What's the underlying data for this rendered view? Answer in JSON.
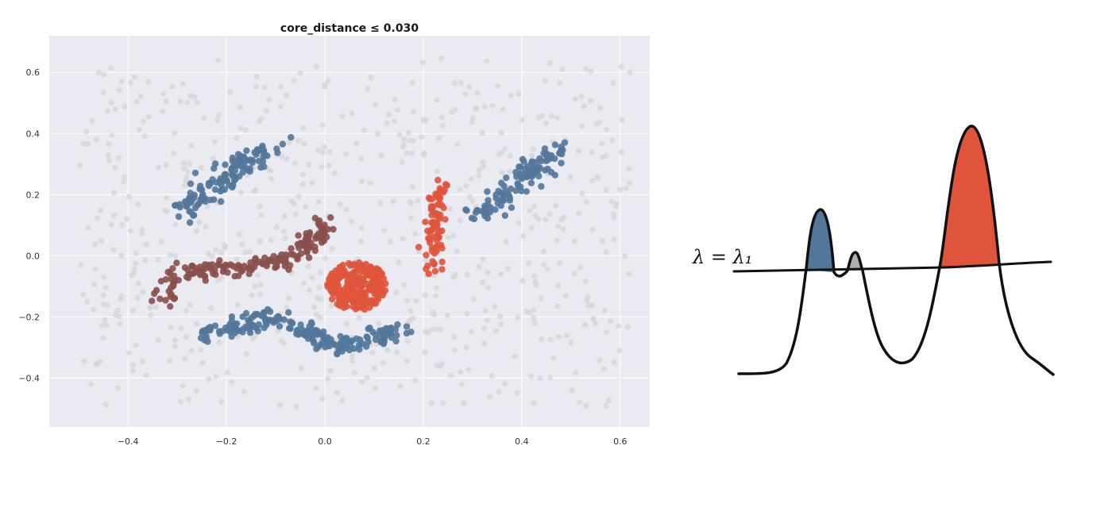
{
  "chart_data": [
    {
      "type": "scatter",
      "title": "core_distance ≤ 0.030",
      "xlabel": "",
      "ylabel": "",
      "xlim": [
        -0.56,
        0.66
      ],
      "ylim": [
        -0.56,
        0.72
      ],
      "x_ticks": [
        "−0.4",
        "−0.2",
        "0.0",
        "0.2",
        "0.4",
        "0.6"
      ],
      "x_tick_values": [
        -0.4,
        -0.2,
        0.0,
        0.2,
        0.4,
        0.6
      ],
      "y_ticks": [
        "0.6",
        "0.4",
        "0.2",
        "0.0",
        "−0.2",
        "−0.4"
      ],
      "y_tick_values": [
        0.6,
        0.4,
        0.2,
        0.0,
        -0.2,
        -0.4
      ],
      "grid": true,
      "background_color": "#eaeaf2",
      "noise_color": "#d6d6d6",
      "clusters": [
        {
          "color": "#52779a",
          "shape": "line",
          "from": [
            -0.3,
            0.13
          ],
          "to": [
            -0.11,
            0.37
          ],
          "count": 130,
          "spread": 0.018
        },
        {
          "color": "#8a4f4a",
          "shape": "curve",
          "points": [
            [
              -0.33,
              -0.15
            ],
            [
              -0.3,
              -0.07
            ],
            [
              -0.24,
              -0.04
            ],
            [
              -0.15,
              -0.04
            ],
            [
              -0.08,
              -0.01
            ],
            [
              -0.03,
              0.04
            ],
            [
              0.01,
              0.1
            ]
          ],
          "count": 170,
          "spread": 0.016
        },
        {
          "color": "#52779a",
          "shape": "curve",
          "points": [
            [
              -0.25,
              -0.26
            ],
            [
              -0.18,
              -0.24
            ],
            [
              -0.12,
              -0.2
            ],
            [
              -0.05,
              -0.24
            ],
            [
              0.02,
              -0.29
            ],
            [
              0.09,
              -0.28
            ],
            [
              0.15,
              -0.24
            ]
          ],
          "count": 200,
          "spread": 0.016
        },
        {
          "color": "#e0543c",
          "shape": "blob",
          "center": [
            0.065,
            -0.1
          ],
          "radius": [
            0.06,
            0.08
          ],
          "count": 240
        },
        {
          "color": "#e0543c",
          "shape": "line",
          "from": [
            0.22,
            -0.05
          ],
          "to": [
            0.235,
            0.23
          ],
          "count": 80,
          "spread": 0.01
        },
        {
          "color": "#52779a",
          "shape": "line",
          "from": [
            0.31,
            0.12
          ],
          "to": [
            0.48,
            0.36
          ],
          "count": 110,
          "spread": 0.016
        }
      ]
    },
    {
      "type": "line",
      "title": "",
      "annotation": "λ = λ₁",
      "level_line_color": "#111111",
      "curve_color": "#111111",
      "filled_regions": [
        {
          "color": "#52779a"
        },
        {
          "color": "#b3aeae"
        },
        {
          "color": "#e0543c"
        }
      ]
    }
  ]
}
